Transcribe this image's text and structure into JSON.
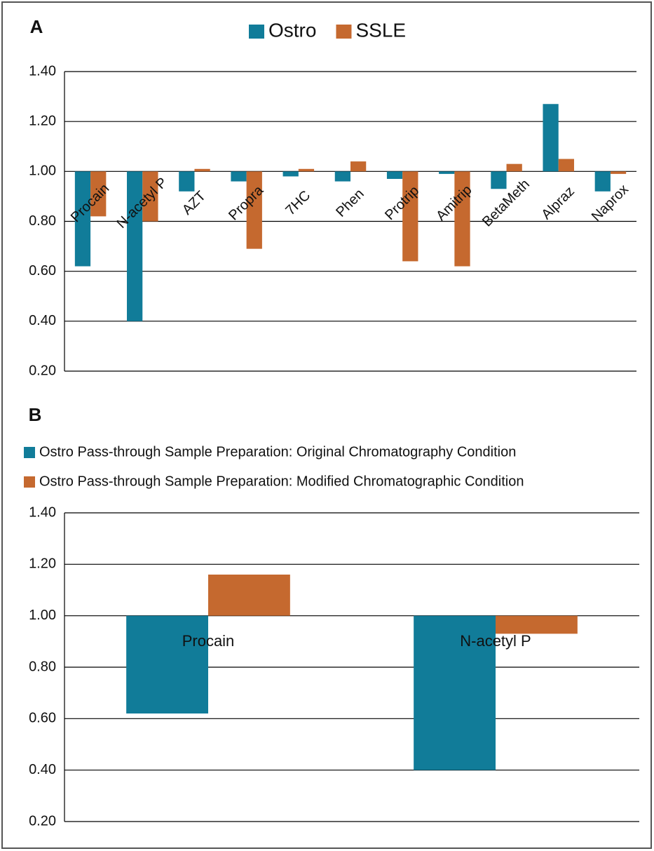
{
  "chart_data": [
    {
      "type": "bar",
      "title": "A",
      "legend": "top",
      "baseline": 1,
      "grid": true,
      "categories": [
        "Procain",
        "N-acetyl P",
        "AZT",
        "Propra",
        "7HC",
        "Phen",
        "Protrip",
        "Amitrip",
        "BetaMeth",
        "Alpraz",
        "Naprox"
      ],
      "series": [
        {
          "name": "Ostro",
          "color": "#117c99",
          "values": [
            0.62,
            0.4,
            0.92,
            0.96,
            0.98,
            0.96,
            0.97,
            0.99,
            0.93,
            1.27,
            0.92
          ]
        },
        {
          "name": "SSLE",
          "color": "#c5692f",
          "values": [
            0.82,
            0.8,
            1.01,
            0.69,
            1.01,
            1.04,
            0.64,
            0.62,
            1.03,
            1.05,
            0.99
          ]
        }
      ],
      "ylim": [
        0.2,
        1.4
      ],
      "yticks": [
        {
          "value": 0.2,
          "label": "0.20"
        },
        {
          "value": 0.4,
          "label": "0.40"
        },
        {
          "value": 0.6,
          "label": "0.60"
        },
        {
          "value": 0.8,
          "label": "0.80"
        },
        {
          "value": 1,
          "label": "1.00"
        },
        {
          "value": 1.2,
          "label": "1.20"
        },
        {
          "value": 1.4,
          "label": "1.40"
        }
      ]
    },
    {
      "type": "bar",
      "title": "B",
      "legend": "top-left",
      "baseline": 1,
      "grid": true,
      "categories": [
        "Procain",
        "N-acetyl P"
      ],
      "series": [
        {
          "name": "Ostro Pass-through Sample Preparation: Original Chromatography Condition",
          "color": "#117c99",
          "values": [
            0.62,
            0.4
          ]
        },
        {
          "name": "Ostro Pass-through Sample Preparation: Modified Chromatographic Condition",
          "color": "#c5692f",
          "values": [
            1.16,
            0.93
          ]
        }
      ],
      "ylim": [
        0.2,
        1.4
      ],
      "yticks": [
        {
          "value": 0.2,
          "label": "0.20"
        },
        {
          "value": 0.4,
          "label": "0.40"
        },
        {
          "value": 0.6,
          "label": "0.60"
        },
        {
          "value": 0.8,
          "label": "0.80"
        },
        {
          "value": 1,
          "label": "1.00"
        },
        {
          "value": 1.2,
          "label": "1.20"
        },
        {
          "value": 1.4,
          "label": "1.40"
        }
      ]
    }
  ]
}
